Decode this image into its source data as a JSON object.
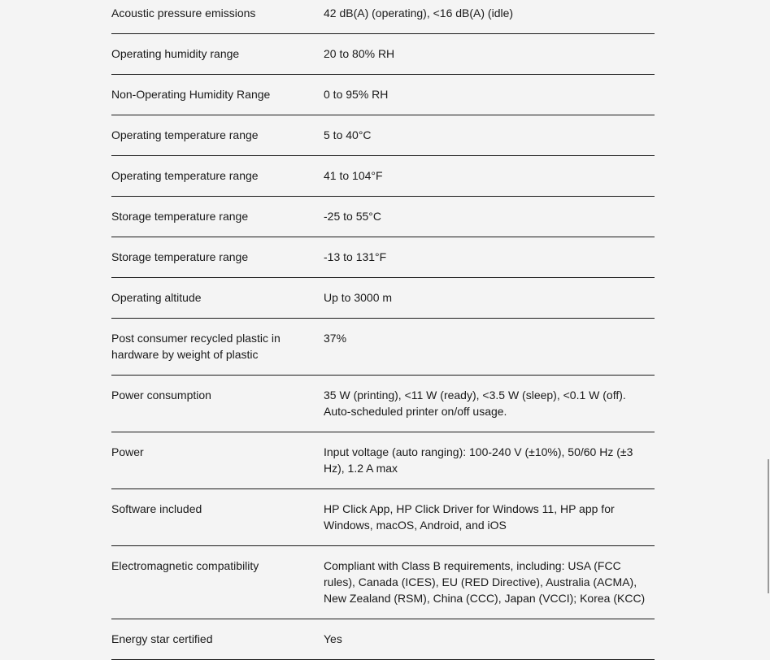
{
  "specs": [
    {
      "label": "Acoustic pressure emissions",
      "value": "42 dB(A) (operating), <16 dB(A) (idle)"
    },
    {
      "label": "Operating humidity range",
      "value": "20 to 80% RH"
    },
    {
      "label": "Non-Operating Humidity Range",
      "value": "0 to 95% RH"
    },
    {
      "label": "Operating temperature range",
      "value": "5 to 40°C"
    },
    {
      "label": "Operating temperature range",
      "value": "41 to 104°F"
    },
    {
      "label": "Storage temperature range",
      "value": "-25 to 55°C"
    },
    {
      "label": "Storage temperature range",
      "value": "-13 to 131°F"
    },
    {
      "label": "Operating altitude",
      "value": "Up to 3000 m"
    },
    {
      "label": "Post consumer recycled plastic in hardware by weight of plastic",
      "value": "37%"
    },
    {
      "label": "Power consumption",
      "value": "35 W (printing), <11 W (ready), <3.5 W (sleep), <0.1 W (off). Auto-scheduled printer on/off usage."
    },
    {
      "label": "Power",
      "value": "Input voltage (auto ranging): 100-240 V (±10%), 50/60 Hz (±3 Hz), 1.2 A max"
    },
    {
      "label": "Software included",
      "value": "HP Click App, HP Click Driver for Windows 11, HP app for Windows, macOS, Android, and iOS"
    },
    {
      "label": "Electromagnetic compatibility",
      "value": "Compliant with Class B requirements, including: USA (FCC rules), Canada (ICES), EU (RED Directive), Australia (ACMA), New Zealand (RSM), China (CCC), Japan (VCCI); Korea (KCC)"
    },
    {
      "label": "Energy star certified",
      "value": "Yes"
    }
  ]
}
